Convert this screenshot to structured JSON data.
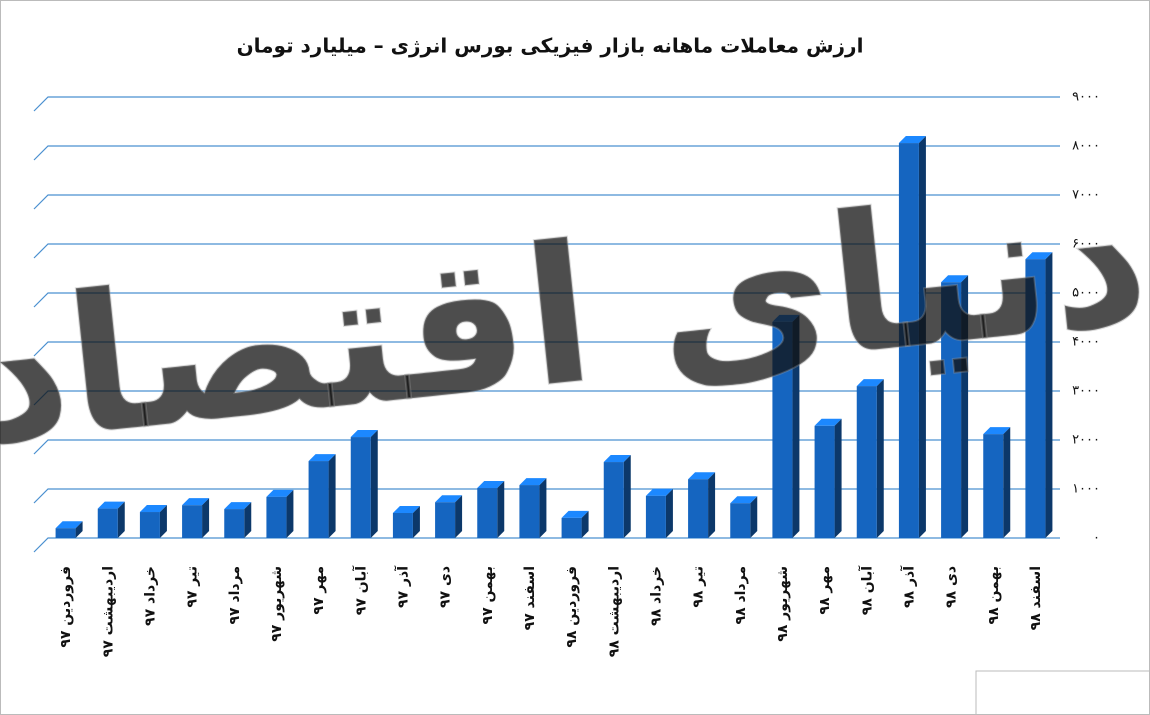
{
  "chart_data": {
    "type": "bar3d",
    "title": "ارزش معاملات ماهانه بازار فیزیکی بورس انرژی – میلیارد تومان",
    "watermark": "دنیای اقتصاد",
    "categories": [
      "فروردین ۹۷",
      "اردیبهشت ۹۷",
      "خرداد ۹۷",
      "تیر ۹۷",
      "مرداد ۹۷",
      "شهریور ۹۷",
      "مهر ۹۷",
      "آبان ۹۷",
      "آذر ۹۷",
      "دی ۹۷",
      "بهمن ۹۷",
      "اسفند ۹۷",
      "فروردین ۹۸",
      "اردیبهشت ۹۸",
      "خرداد ۹۸",
      "تیر ۹۸",
      "مرداد ۹۸",
      "شهریور ۹۸",
      "مهر ۹۸",
      "آبان ۹۸",
      "آذر ۹۸",
      "دی ۹۸",
      "بهمن ۹۸",
      "اسفند ۹۸"
    ],
    "values": [
      200,
      600,
      530,
      670,
      590,
      840,
      1570,
      2060,
      510,
      730,
      1020,
      1080,
      410,
      1550,
      860,
      1200,
      710,
      4410,
      2290,
      3100,
      8060,
      5220,
      2120,
      5690
    ],
    "color": "#1565c0",
    "ylim": [
      0,
      9000
    ],
    "yticks": [
      {
        "value": 0,
        "label": "۰"
      },
      {
        "value": 1000,
        "label": "۱۰۰۰"
      },
      {
        "value": 2000,
        "label": "۲۰۰۰"
      },
      {
        "value": 3000,
        "label": "۳۰۰۰"
      },
      {
        "value": 4000,
        "label": "۴۰۰۰"
      },
      {
        "value": 5000,
        "label": "۵۰۰۰"
      },
      {
        "value": 6000,
        "label": "۶۰۰۰"
      },
      {
        "value": 7000,
        "label": "۷۰۰۰"
      },
      {
        "value": 8000,
        "label": "۸۰۰۰"
      },
      {
        "value": 9000,
        "label": "۹۰۰۰"
      }
    ],
    "grid": true
  }
}
